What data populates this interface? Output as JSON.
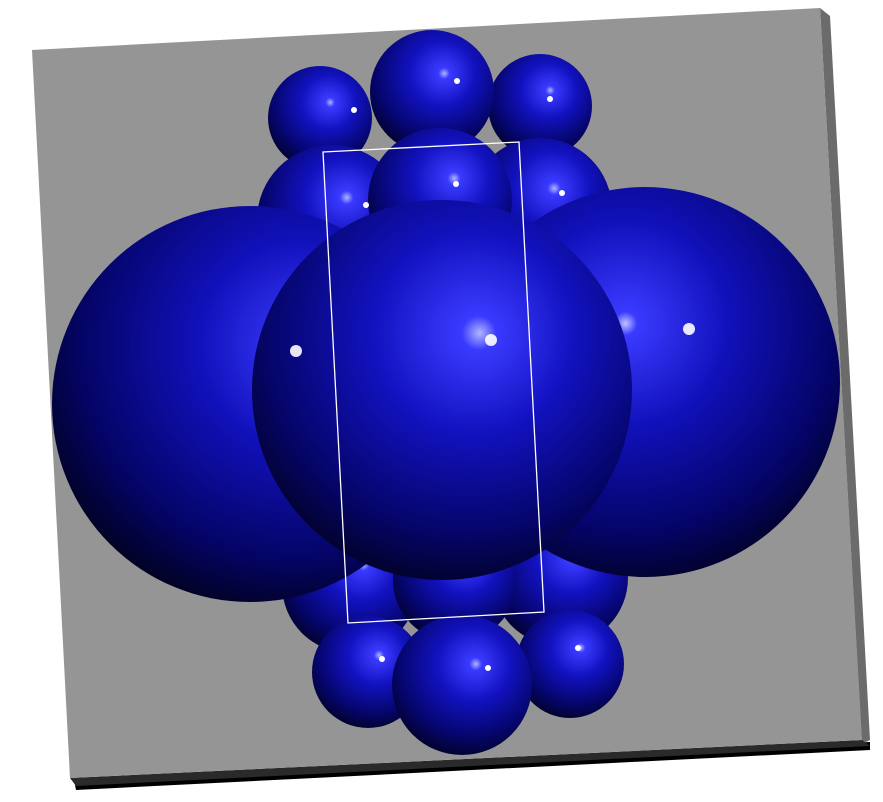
{
  "scene": {
    "description_visible_text": "",
    "colors": {
      "background": "#ffffff",
      "panel": "#959595",
      "panel_edge": "#6f6f6f",
      "panel_shadow": "#000000",
      "sphere_highlight": "#9aa0ff",
      "sphere_mid": "#1010c8",
      "sphere_dark": "#000010",
      "cell_outline": "#ffffff"
    },
    "objects": [
      {
        "kind": "sphere",
        "name": "large-sphere-left"
      },
      {
        "kind": "sphere",
        "name": "large-sphere-right"
      },
      {
        "kind": "sphere",
        "name": "large-sphere-center"
      },
      {
        "kind": "sphere",
        "name": "small-sphere-top-left"
      },
      {
        "kind": "sphere",
        "name": "small-sphere-top-center"
      },
      {
        "kind": "sphere",
        "name": "small-sphere-top-right"
      },
      {
        "kind": "sphere",
        "name": "small-sphere-upper-left"
      },
      {
        "kind": "sphere",
        "name": "small-sphere-upper-center"
      },
      {
        "kind": "sphere",
        "name": "small-sphere-upper-right"
      },
      {
        "kind": "sphere",
        "name": "small-sphere-lower-left"
      },
      {
        "kind": "sphere",
        "name": "small-sphere-lower-center"
      },
      {
        "kind": "sphere",
        "name": "small-sphere-lower-right"
      },
      {
        "kind": "sphere",
        "name": "small-sphere-bottom-left"
      },
      {
        "kind": "sphere",
        "name": "small-sphere-bottom-center"
      },
      {
        "kind": "sphere",
        "name": "small-sphere-bottom-right"
      }
    ]
  }
}
